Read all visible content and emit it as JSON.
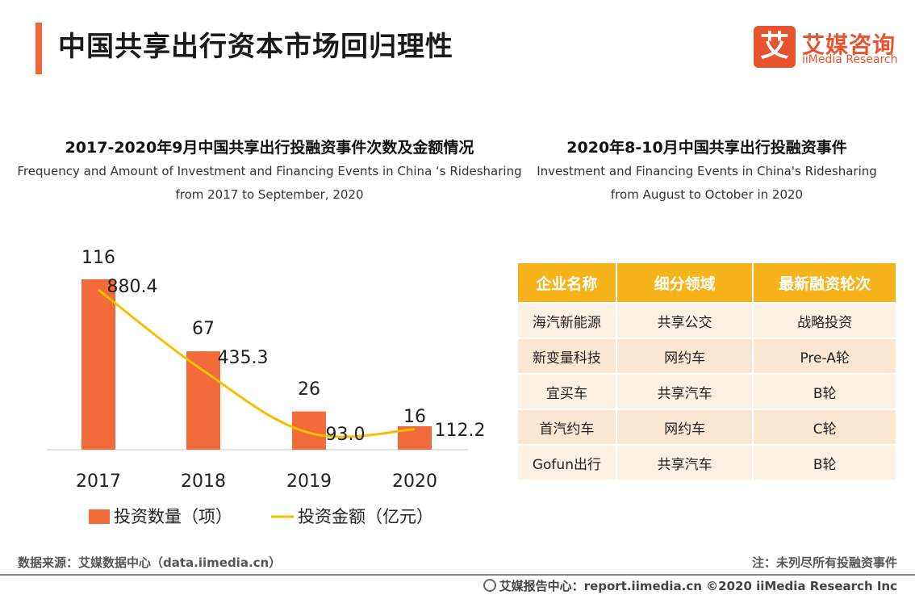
{
  "page": {
    "title": "中国共享出行资本市场回归理性",
    "logo_cn": "艾媒咨询",
    "logo_en": "iiMedia Research",
    "logo_mark": "艾"
  },
  "left": {
    "title_cn": "2017-2020年9月中国共享出行投融资事件次数及金额情况",
    "title_en_1": "Frequency and Amount of Investment and Financing Events in China ‘s Ridesharing",
    "title_en_2": "from 2017 to September, 2020"
  },
  "right": {
    "title_cn": "2020年8-10月中国共享出行投融资事件",
    "title_en_1": "Investment and Financing Events in China's Ridesharing",
    "title_en_2": "from August to October in 2020",
    "table": {
      "headers": [
        "企业名称",
        "细分领域",
        "最新融资轮次"
      ],
      "rows": [
        [
          "海汽新能源",
          "共享公交",
          "战略投资"
        ],
        [
          "新变量科技",
          "网约车",
          "Pre-A轮"
        ],
        [
          "宜买车",
          "共享汽车",
          "B轮"
        ],
        [
          "首汽约车",
          "网约车",
          "C轮"
        ],
        [
          "Gofun出行",
          "共享汽车",
          "B轮"
        ]
      ]
    }
  },
  "chart_data": {
    "type": "bar",
    "categories": [
      "2017",
      "2018",
      "2019",
      "2020"
    ],
    "series": [
      {
        "name": "投资数量（项）",
        "type": "bar",
        "values": [
          116,
          67,
          26,
          16
        ],
        "color": "#f26b3a"
      },
      {
        "name": "投资金额（亿元）",
        "type": "line",
        "values": [
          880.4,
          435.3,
          93.0,
          112.2
        ],
        "color": "#f5c000"
      }
    ],
    "bar_labels": [
      "116",
      "67",
      "26",
      "16"
    ],
    "line_labels": [
      "880.4",
      "435.3",
      "93.0",
      "112.2"
    ],
    "legend": "bottom",
    "grid": false
  },
  "footer": {
    "source": "数据来源：艾媒数据中心（data.iimedia.cn）",
    "note": "注：未列尽所有投融资事件",
    "copyright": "艾媒报告中心：report.iimedia.cn ©2020  iiMedia Research  Inc"
  }
}
